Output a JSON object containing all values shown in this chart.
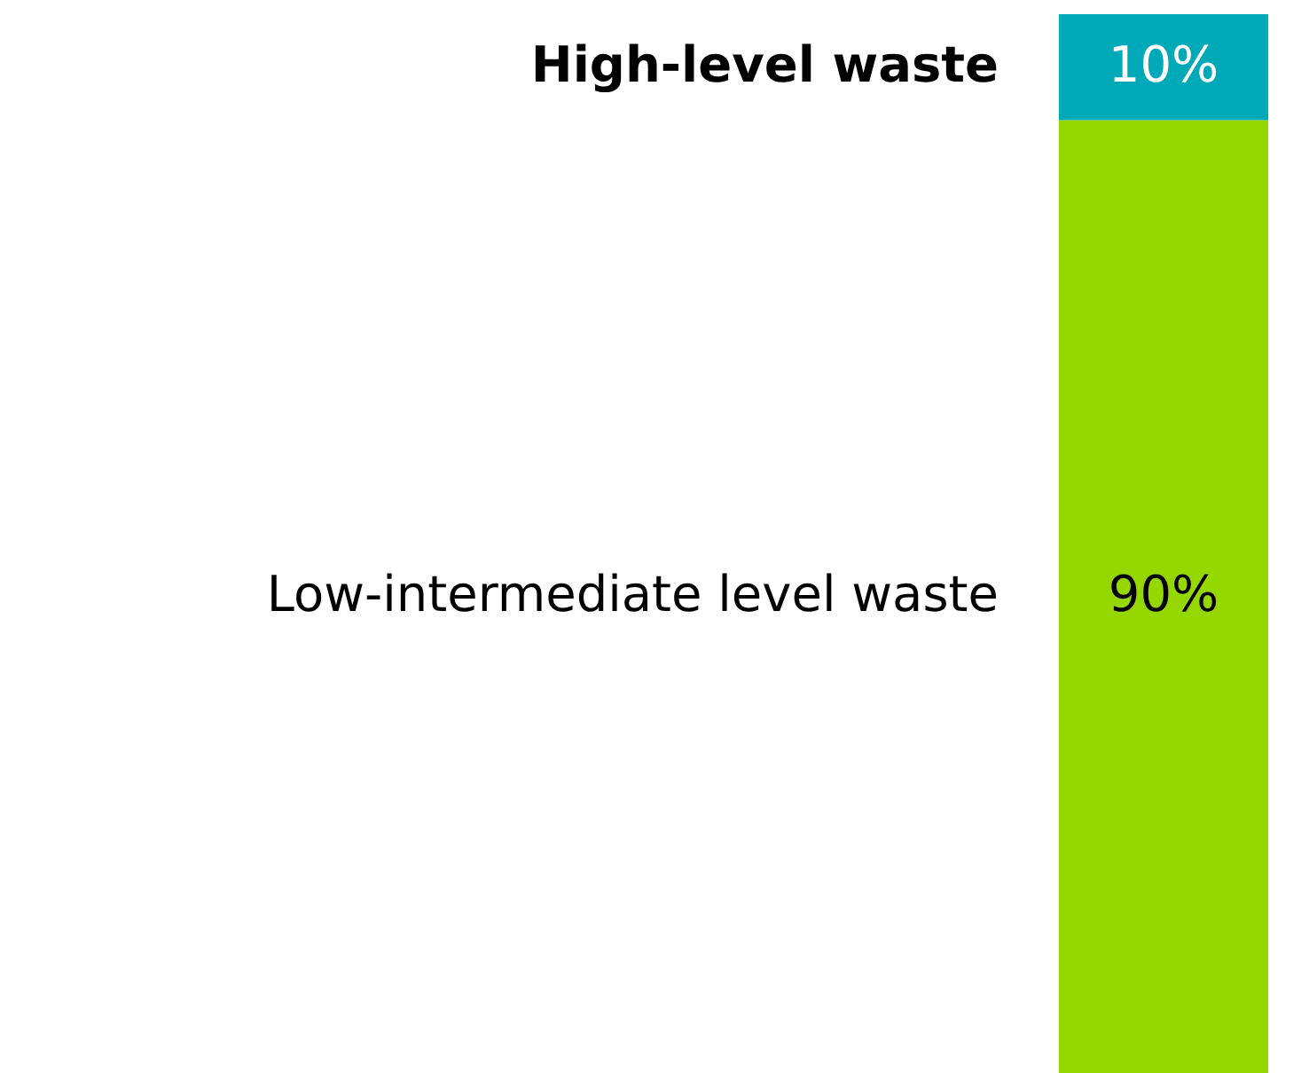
{
  "chart_data": {
    "type": "bar",
    "stacked": true,
    "categories": [
      null
    ],
    "series": [
      {
        "name": "Low-intermediate level waste",
        "color": "#97d700",
        "values": [
          90
        ],
        "value_labels": [
          "90%"
        ]
      },
      {
        "name": "High-level waste",
        "color": "#00a9b7",
        "values": [
          10
        ],
        "value_labels": [
          "10%"
        ]
      }
    ]
  }
}
